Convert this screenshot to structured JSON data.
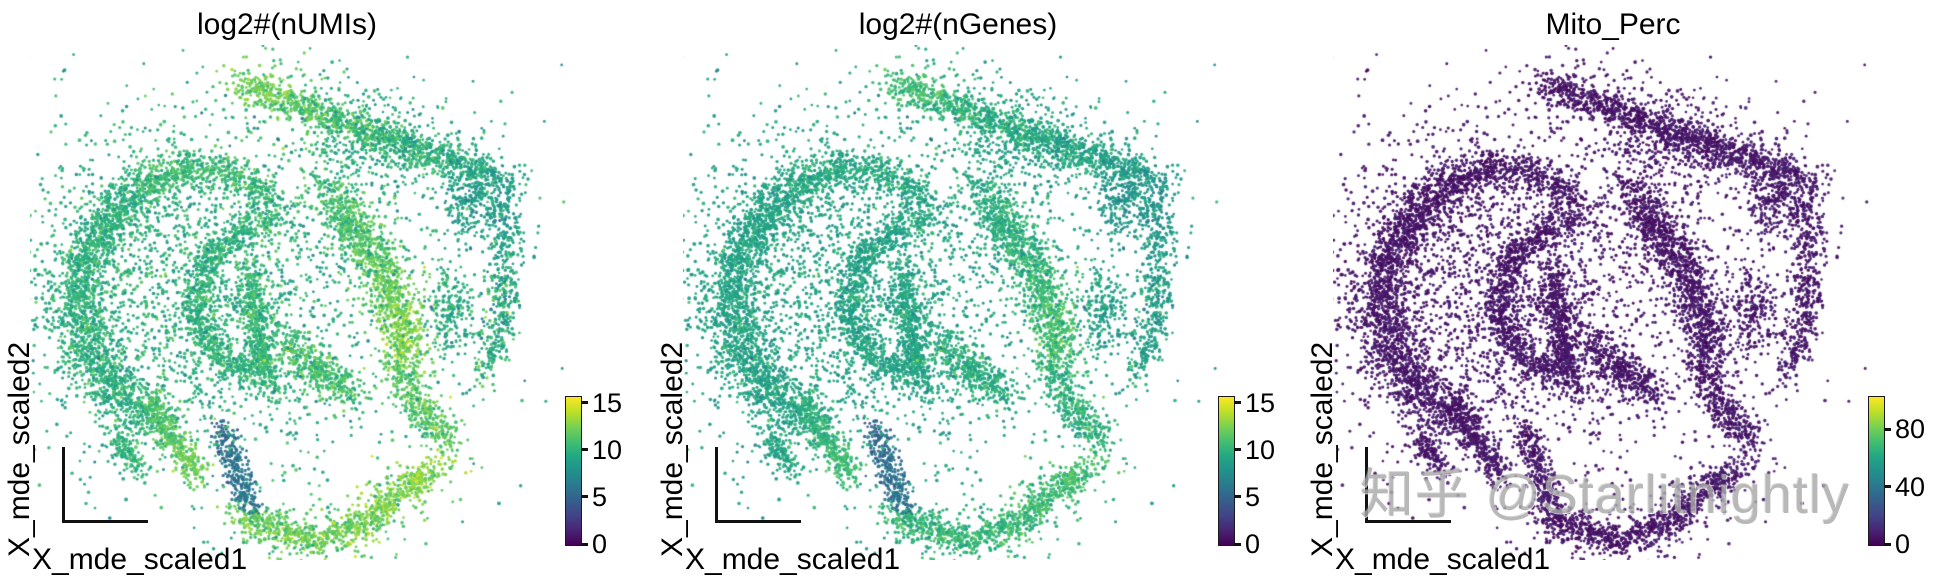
{
  "figure": {
    "background": "#ffffff",
    "watermark": {
      "text": "知乎 @Starlitnightly",
      "color": "#a9a9a9"
    }
  },
  "colormap": {
    "name": "viridis",
    "stops": [
      "#440154",
      "#482475",
      "#414487",
      "#355f8d",
      "#2a788e",
      "#21918c",
      "#22a884",
      "#44bf70",
      "#7ad151",
      "#bddf26",
      "#fde725"
    ]
  },
  "chart_data": {
    "type": "scatter",
    "description": "Three MDE embedding scatter plots of single cells, identical point positions, colored by per-cell QC metrics with viridis colorbars",
    "xlabel": "X_mde_scaled1",
    "ylabel": "X_mde_scaled2",
    "axes_numeric_ticks": "none (schematic corner axes only)",
    "n_points_per_panel_approx": 12650,
    "panels": [
      {
        "title": "log2#(nUMIs)",
        "metric": "numis",
        "vmin": 0,
        "vmax": 15.7,
        "colorbar_ticks": [
          0,
          5,
          10,
          15
        ]
      },
      {
        "title": "log2#(nGenes)",
        "metric": "ngenes",
        "vmin": 0,
        "vmax": 15.7,
        "colorbar_ticks": [
          0,
          5,
          10,
          15
        ]
      },
      {
        "title": "Mito_Perc",
        "metric": "mito",
        "vmin": 0,
        "vmax": 103,
        "colorbar_ticks": [
          0,
          40,
          80
        ]
      }
    ],
    "typical_values": {
      "numis": "8.5-13.5",
      "ngenes": "8-11.5",
      "mito": "3-10"
    },
    "components": [
      {
        "name": "top-band",
        "kind": "band",
        "pts": [
          [
            0.385,
            0.069
          ],
          [
            0.5,
            0.109
          ],
          [
            0.615,
            0.158
          ],
          [
            0.731,
            0.202
          ],
          [
            0.827,
            0.234
          ],
          [
            0.894,
            0.261
          ]
        ],
        "width": 0.016,
        "n": 1100,
        "values": {
          "numis": [
            12.5,
            9,
            0.8
          ],
          "ngenes": [
            11,
            8.5,
            0.7
          ],
          "mito": [
            5,
            7,
            2.2
          ]
        }
      },
      {
        "name": "top-band-halo",
        "kind": "band",
        "pts": [
          [
            0.385,
            0.069
          ],
          [
            0.5,
            0.109
          ],
          [
            0.615,
            0.158
          ],
          [
            0.731,
            0.202
          ],
          [
            0.827,
            0.234
          ],
          [
            0.894,
            0.261
          ]
        ],
        "width": 0.05,
        "n": 350,
        "values": {
          "numis": [
            11.5,
            9,
            1
          ],
          "ngenes": [
            10,
            8.5,
            0.9
          ],
          "mito": [
            5,
            7,
            2.2
          ]
        }
      },
      {
        "name": "right-edge-upper",
        "kind": "band",
        "pts": [
          [
            0.846,
            0.267
          ],
          [
            0.885,
            0.327
          ],
          [
            0.898,
            0.396
          ]
        ],
        "width": 0.02,
        "n": 220,
        "values": {
          "numis": [
            8.5,
            9,
            0.8
          ],
          "ngenes": [
            8,
            8.5,
            0.7
          ],
          "mito": [
            5,
            7,
            2.2
          ]
        }
      },
      {
        "name": "far-right-chain",
        "kind": "band",
        "pts": [
          [
            0.885,
            0.406
          ],
          [
            0.894,
            0.485
          ],
          [
            0.881,
            0.564
          ],
          [
            0.85,
            0.638
          ]
        ],
        "width": 0.014,
        "n": 320,
        "values": {
          "numis": [
            9,
            10,
            1.4
          ],
          "ngenes": [
            8.5,
            9,
            1.1
          ],
          "mito": [
            5,
            7,
            2.2
          ]
        }
      },
      {
        "name": "right-crescent",
        "kind": "band",
        "pts": [
          [
            0.558,
            0.277
          ],
          [
            0.612,
            0.36
          ],
          [
            0.663,
            0.451
          ],
          [
            0.696,
            0.539
          ],
          [
            0.702,
            0.614
          ]
        ],
        "width": 0.02,
        "n": 1000,
        "values": {
          "numis": [
            11,
            13,
            0.7
          ],
          "ngenes": [
            9.8,
            11.3,
            0.6
          ],
          "mito": [
            5,
            7,
            2.2
          ]
        }
      },
      {
        "name": "right-crescent-halo",
        "kind": "band",
        "pts": [
          [
            0.558,
            0.277
          ],
          [
            0.612,
            0.36
          ],
          [
            0.663,
            0.451
          ],
          [
            0.696,
            0.539
          ],
          [
            0.702,
            0.614
          ]
        ],
        "width": 0.06,
        "n": 300,
        "values": {
          "numis": [
            10,
            11.5,
            1
          ],
          "ngenes": [
            9,
            10,
            0.8
          ],
          "mito": [
            5,
            7,
            2.2
          ]
        }
      },
      {
        "name": "right-hook",
        "kind": "band",
        "pts": [
          [
            0.692,
            0.63
          ],
          [
            0.721,
            0.693
          ],
          [
            0.763,
            0.748
          ],
          [
            0.798,
            0.776
          ]
        ],
        "width": 0.018,
        "n": 380,
        "values": {
          "numis": [
            11.5,
            11.5,
            0.9
          ],
          "ngenes": [
            10,
            10,
            0.8
          ],
          "mito": [
            5,
            7,
            2.2
          ]
        }
      },
      {
        "name": "right-mid-blob",
        "kind": "blob",
        "center": [
          0.792,
          0.515
        ],
        "sigma": [
          0.022,
          0.045
        ],
        "n": 200,
        "values": {
          "numis": [
            9.5,
            9.5,
            1
          ],
          "ngenes": [
            8.8,
            8.8,
            0.8
          ],
          "mito": [
            5,
            7,
            2.2
          ]
        }
      },
      {
        "name": "right-upper-column",
        "kind": "blob",
        "center": [
          0.817,
          0.307
        ],
        "sigma": [
          0.02,
          0.05
        ],
        "n": 150,
        "values": {
          "numis": [
            8.5,
            8.5,
            1
          ],
          "ngenes": [
            8,
            8,
            0.8
          ],
          "mito": [
            5,
            7,
            2.2
          ]
        }
      },
      {
        "name": "bottom-arc",
        "kind": "band",
        "pts": [
          [
            0.385,
            0.923
          ],
          [
            0.462,
            0.954
          ],
          [
            0.538,
            0.97
          ],
          [
            0.625,
            0.935
          ],
          [
            0.712,
            0.867
          ],
          [
            0.763,
            0.816
          ]
        ],
        "width": 0.015,
        "n": 850,
        "values": {
          "numis": [
            12,
            13,
            0.9
          ],
          "ngenes": [
            10.3,
            11,
            0.8
          ],
          "mito": [
            5,
            7,
            2.2
          ]
        }
      },
      {
        "name": "bottom-arc-halo",
        "kind": "band",
        "pts": [
          [
            0.385,
            0.923
          ],
          [
            0.462,
            0.954
          ],
          [
            0.538,
            0.97
          ],
          [
            0.625,
            0.935
          ],
          [
            0.712,
            0.867
          ],
          [
            0.763,
            0.816
          ]
        ],
        "width": 0.045,
        "n": 250,
        "values": {
          "numis": [
            11,
            12,
            1
          ],
          "ngenes": [
            9.5,
            10.3,
            0.8
          ],
          "mito": [
            5,
            7,
            2.2
          ]
        }
      },
      {
        "name": "bottom-mid-tail",
        "kind": "band",
        "pts": [
          [
            0.35,
            0.748
          ],
          [
            0.369,
            0.808
          ],
          [
            0.39,
            0.867
          ],
          [
            0.404,
            0.901
          ]
        ],
        "width": 0.012,
        "n": 300,
        "values": {
          "numis": [
            5.5,
            6,
            0.8
          ],
          "ngenes": [
            5.2,
            5.8,
            0.7
          ],
          "mito": [
            5,
            7,
            2.2
          ]
        }
      },
      {
        "name": "left-outer-arc",
        "kind": "band",
        "pts": [
          [
            0.212,
            0.261
          ],
          [
            0.138,
            0.327
          ],
          [
            0.088,
            0.412
          ],
          [
            0.075,
            0.511
          ],
          [
            0.102,
            0.61
          ],
          [
            0.15,
            0.681
          ],
          [
            0.212,
            0.737
          ]
        ],
        "width": 0.022,
        "n": 1500,
        "values": {
          "numis": [
            10,
            10,
            0.8
          ],
          "ngenes": [
            9.2,
            9.2,
            0.7
          ],
          "mito": [
            5,
            7,
            2.2
          ]
        }
      },
      {
        "name": "left-outer-halo",
        "kind": "band",
        "pts": [
          [
            0.212,
            0.261
          ],
          [
            0.138,
            0.327
          ],
          [
            0.088,
            0.412
          ],
          [
            0.075,
            0.511
          ],
          [
            0.102,
            0.61
          ],
          [
            0.15,
            0.681
          ],
          [
            0.212,
            0.737
          ]
        ],
        "width": 0.06,
        "n": 500,
        "values": {
          "numis": [
            9.8,
            9.8,
            1
          ],
          "ngenes": [
            9,
            9,
            0.8
          ],
          "mito": [
            5,
            7,
            2.2
          ]
        }
      },
      {
        "name": "left-top-arc",
        "kind": "band",
        "pts": [
          [
            0.212,
            0.261
          ],
          [
            0.292,
            0.234
          ],
          [
            0.381,
            0.25
          ],
          [
            0.458,
            0.297
          ]
        ],
        "width": 0.018,
        "n": 550,
        "values": {
          "numis": [
            11,
            10.5,
            0.8
          ],
          "ngenes": [
            9.8,
            9.5,
            0.7
          ],
          "mito": [
            5,
            7,
            2.2
          ]
        }
      },
      {
        "name": "inner-spiral",
        "kind": "band",
        "pts": [
          [
            0.438,
            0.341
          ],
          [
            0.369,
            0.37
          ],
          [
            0.319,
            0.428
          ],
          [
            0.3,
            0.499
          ],
          [
            0.319,
            0.574
          ],
          [
            0.365,
            0.622
          ],
          [
            0.427,
            0.634
          ]
        ],
        "width": 0.016,
        "n": 850,
        "values": {
          "numis": [
            10.2,
            10.2,
            0.8
          ],
          "ngenes": [
            9.2,
            9.2,
            0.7
          ],
          "mito": [
            5,
            7,
            2.2
          ]
        }
      },
      {
        "name": "inner-vertical-band",
        "kind": "band",
        "pts": [
          [
            0.404,
            0.44
          ],
          [
            0.413,
            0.525
          ],
          [
            0.427,
            0.604
          ],
          [
            0.446,
            0.669
          ]
        ],
        "width": 0.013,
        "n": 500,
        "values": {
          "numis": [
            10.5,
            10.5,
            0.8
          ],
          "ngenes": [
            9.3,
            9.3,
            0.7
          ],
          "mito": [
            5,
            7,
            2.2
          ]
        }
      },
      {
        "name": "left-fill",
        "kind": "blob",
        "center": [
          0.279,
          0.479
        ],
        "sigma": [
          0.15,
          0.17
        ],
        "n": 1600,
        "values": {
          "numis": [
            9.8,
            9.8,
            1
          ],
          "ngenes": [
            9,
            9,
            0.8
          ],
          "mito": [
            5,
            7,
            2.2
          ]
        }
      },
      {
        "name": "left-mid-diagonal",
        "kind": "band",
        "pts": [
          [
            0.471,
            0.57
          ],
          [
            0.538,
            0.638
          ],
          [
            0.6,
            0.689
          ]
        ],
        "width": 0.02,
        "n": 420,
        "values": {
          "numis": [
            11,
            11,
            0.9
          ],
          "ngenes": [
            9.8,
            9.8,
            0.8
          ],
          "mito": [
            5,
            7,
            2.2
          ]
        }
      },
      {
        "name": "bottom-left-tail",
        "kind": "band",
        "pts": [
          [
            0.212,
            0.685
          ],
          [
            0.24,
            0.749
          ],
          [
            0.281,
            0.808
          ],
          [
            0.302,
            0.84
          ]
        ],
        "width": 0.013,
        "n": 380,
        "values": {
          "numis": [
            11,
            12.3,
            0.7
          ],
          "ngenes": [
            9.8,
            10.8,
            0.6
          ],
          "mito": [
            5,
            7,
            2.2
          ]
        }
      },
      {
        "name": "far-bottom-left-tail",
        "kind": "band",
        "pts": [
          [
            0.15,
            0.764
          ],
          [
            0.169,
            0.798
          ],
          [
            0.19,
            0.83
          ]
        ],
        "width": 0.01,
        "n": 140,
        "values": {
          "numis": [
            10,
            10.5,
            0.8
          ],
          "ngenes": [
            9.2,
            9.5,
            0.7
          ],
          "mito": [
            5,
            7,
            2.2
          ]
        }
      },
      {
        "name": "top-right-patch",
        "kind": "blob",
        "center": [
          0.635,
          0.178
        ],
        "sigma": [
          0.07,
          0.05
        ],
        "n": 220,
        "values": {
          "numis": [
            9,
            9.5,
            1
          ],
          "ngenes": [
            8.5,
            9,
            0.8
          ],
          "mito": [
            5,
            7,
            2.2
          ]
        }
      },
      {
        "name": "sparse-field",
        "kind": "blob",
        "center": [
          0.48,
          0.46
        ],
        "sigma": [
          0.26,
          0.24
        ],
        "n": 420,
        "values": {
          "numis": [
            9,
            9.5,
            1.4
          ],
          "ngenes": [
            8.5,
            9,
            1.2
          ],
          "mito": [
            5,
            7,
            2.2
          ]
        }
      },
      {
        "name": "center-gap-scatter",
        "kind": "blob",
        "center": [
          0.5,
          0.495
        ],
        "sigma": [
          0.06,
          0.12
        ],
        "n": 150,
        "values": {
          "numis": [
            9.5,
            9.5,
            1
          ],
          "ngenes": [
            8.8,
            8.8,
            0.8
          ],
          "mito": [
            5,
            7,
            2.2
          ]
        }
      }
    ]
  }
}
